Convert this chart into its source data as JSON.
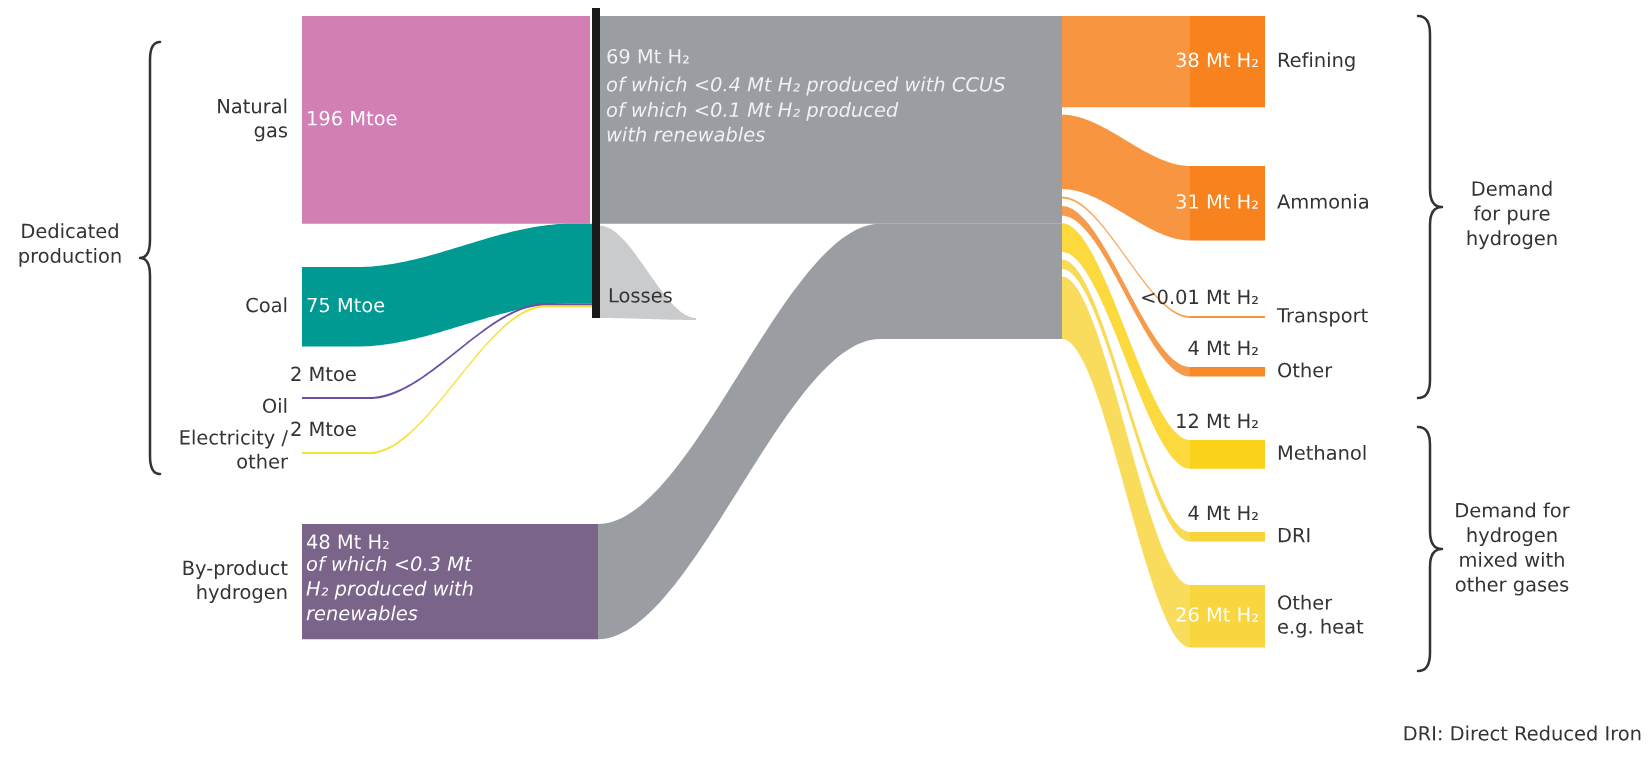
{
  "chart_data": {
    "type": "other",
    "categories": [
      "Natural\ngas",
      "Coal",
      "Oil",
      "Electricity /\nother",
      "By-product\nhydrogen",
      "Refining",
      "Ammonia",
      "Transport",
      "Other",
      "Methanol",
      "DRI",
      "Other\ne.g. heat"
    ],
    "values": [
      196,
      75,
      2,
      2,
      48,
      38,
      31,
      0.01,
      4,
      12,
      4,
      26
    ],
    "value_labels": [
      "196 Mtoe",
      "75 Mtoe",
      "2 Mtoe",
      "2 Mtoe",
      "48 Mt H₂",
      "38 Mt H₂",
      "31 Mt H₂",
      "<0.01 Mt H₂",
      "4 Mt H₂",
      "12 Mt H₂",
      "4 Mt H₂",
      "26 Mt H₂"
    ],
    "colors": [
      "#d17fb4",
      "#009a93",
      "#6a4fa3",
      "#f2e43c",
      "#7b6489",
      "#f7821e",
      "#f7821e",
      "#f7953a",
      "#f48a2c",
      "#fbd21b",
      "#f8d43a",
      "#f9d640"
    ],
    "annotations": [
      "69 Mt H₂",
      "of which <0.4 Mt H₂ produced with CCUS",
      "of which <0.1 Mt H₂ produced\nwith renewables",
      "of which <0.3 Mt\nH₂ produced with\nrenewables",
      "Losses",
      "Dedicated\nproduction",
      "Demand\nfor pure\nhydrogen",
      "Demand for\nhydrogen\nmixed with\nother gases",
      "DRI: Direct Reduced Iron"
    ]
  }
}
